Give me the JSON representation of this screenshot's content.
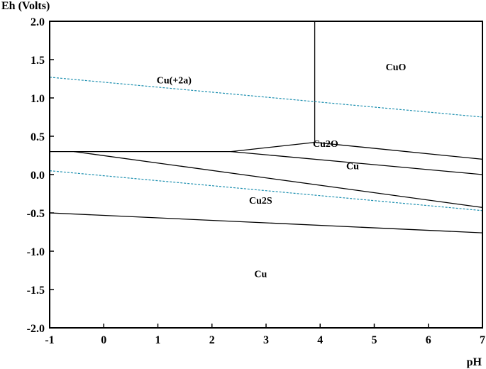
{
  "chart_data": {
    "type": "line",
    "xlabel": "pH",
    "ylabel": "Eh (Volts)",
    "xlim": [
      -1,
      7
    ],
    "ylim": [
      -2.0,
      2.0
    ],
    "xticks": [
      -1,
      0,
      1,
      2,
      3,
      4,
      5,
      6,
      7
    ],
    "xtick_labels": [
      "-1",
      "0",
      "1",
      "2",
      "3",
      "4",
      "5",
      "6",
      "7"
    ],
    "yticks": [
      2.0,
      1.5,
      1.0,
      0.5,
      0.0,
      -0.5,
      -1.0,
      -1.5,
      -2.0
    ],
    "ytick_labels": [
      "2.0",
      "1.5",
      "1.0",
      "0.5",
      "0.0",
      "-0.5",
      "-1.0",
      "-1.5",
      "-2.0"
    ],
    "grid": false,
    "boundaries": [
      {
        "style": "solid",
        "color": "#000000",
        "points": [
          [
            3.9,
            2.0
          ],
          [
            3.9,
            0.42
          ]
        ]
      },
      {
        "style": "solid",
        "color": "#000000",
        "points": [
          [
            -1,
            0.3
          ],
          [
            2.35,
            0.3
          ]
        ]
      },
      {
        "style": "solid",
        "color": "#000000",
        "points": [
          [
            2.35,
            0.3
          ],
          [
            3.9,
            0.42
          ]
        ]
      },
      {
        "style": "solid",
        "color": "#000000",
        "points": [
          [
            3.9,
            0.42
          ],
          [
            7,
            0.2
          ]
        ]
      },
      {
        "style": "solid",
        "color": "#000000",
        "points": [
          [
            -0.55,
            0.3
          ],
          [
            7,
            -0.43
          ]
        ]
      },
      {
        "style": "solid",
        "color": "#000000",
        "points": [
          [
            2.35,
            0.3
          ],
          [
            7,
            0.0
          ]
        ]
      },
      {
        "style": "solid",
        "color": "#000000",
        "points": [
          [
            -1,
            -0.5
          ],
          [
            7,
            -0.76
          ]
        ]
      },
      {
        "style": "dashed",
        "color": "#1e90b0",
        "points": [
          [
            -1,
            1.27
          ],
          [
            7,
            0.75
          ]
        ]
      },
      {
        "style": "dashed",
        "color": "#1e90b0",
        "points": [
          [
            -1,
            0.05
          ],
          [
            7,
            -0.47
          ]
        ]
      }
    ],
    "annotations": [
      {
        "text": "Cu(+2a)",
        "x": 1.3,
        "y": 1.19
      },
      {
        "text": "CuO",
        "x": 5.4,
        "y": 1.36
      },
      {
        "text": "Cu2O",
        "x": 4.1,
        "y": 0.36
      },
      {
        "text": "Cu",
        "x": 4.6,
        "y": 0.07
      },
      {
        "text": "Cu2S",
        "x": 2.9,
        "y": -0.38
      },
      {
        "text": "Cu",
        "x": 2.9,
        "y": -1.34
      }
    ]
  }
}
